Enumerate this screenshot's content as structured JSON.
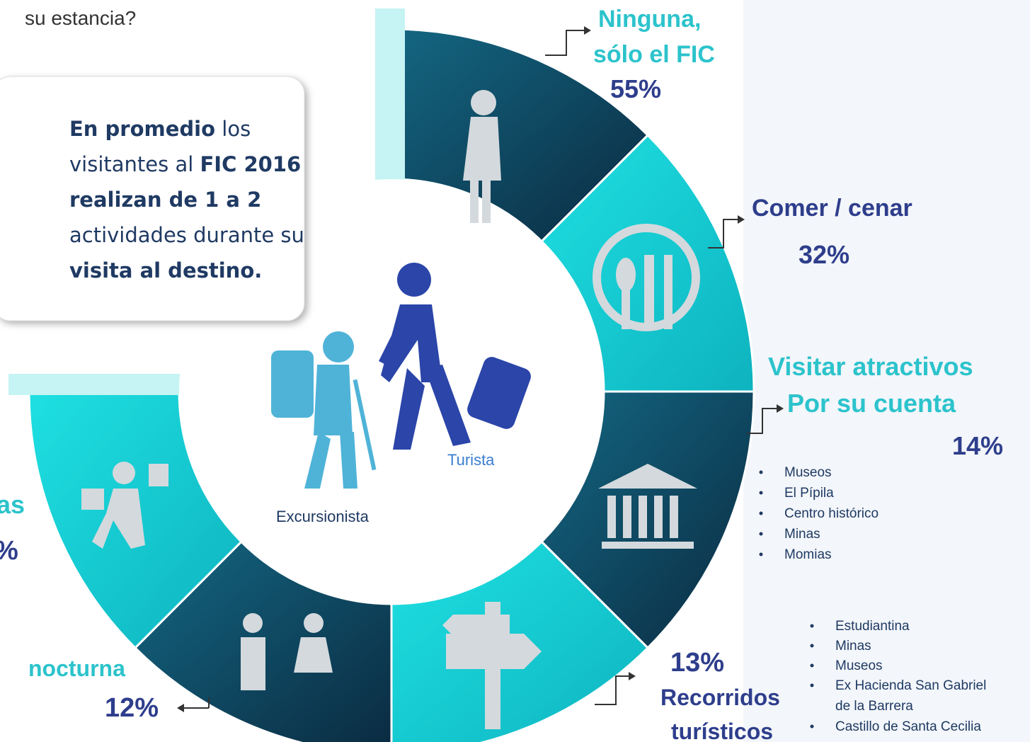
{
  "question_fragment": "su estancia?",
  "callout": {
    "lines": [
      [
        {
          "text": "En promedio",
          "bold": true
        },
        {
          "text": " los",
          "bold": false
        }
      ],
      [
        {
          "text": "visitantes al ",
          "bold": false
        },
        {
          "text": "FIC 2016",
          "bold": true
        }
      ],
      [
        {
          "text": "realizan de 1 a 2",
          "bold": true
        }
      ],
      [
        {
          "text": "actividades durante su",
          "bold": false
        }
      ],
      [
        {
          "text": "visita al destino.",
          "bold": true
        }
      ]
    ]
  },
  "center": {
    "tourist": "Turista",
    "hiker": "Excursionista"
  },
  "segments": [
    {
      "label_lines": [
        "Ninguna,",
        "sólo el FIC"
      ],
      "percent": "55%"
    },
    {
      "label_lines": [
        "Comer / cenar"
      ],
      "percent": "32%"
    },
    {
      "label_lines": [
        "Visitar atractivos",
        "Por su cuenta"
      ],
      "percent": "14%",
      "details": [
        "Museos",
        "El Pípila",
        "Centro histórico",
        "Minas",
        "Momias"
      ]
    },
    {
      "label_lines": [
        "Recorridos",
        "turísticos"
      ],
      "percent": "13%",
      "details": [
        "Estudiantina",
        "Minas",
        "Museos",
        "Ex Hacienda San Gabriel",
        "Castillo de Santa Cecilia"
      ],
      "detail_continuation": "de la Barrera"
    },
    {
      "label_lines": [
        "nocturna"
      ],
      "percent": "12%"
    },
    {
      "label_lines": [
        "as"
      ],
      "percent": "%"
    }
  ]
}
